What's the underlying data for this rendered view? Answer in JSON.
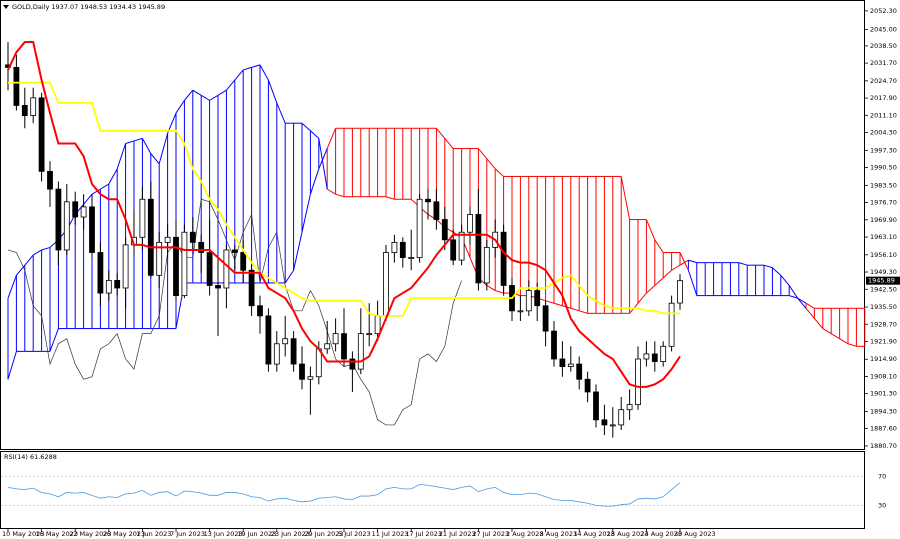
{
  "chart_data": [
    {
      "type": "candlestick",
      "header": "GOLD,Daily 1937.07 1948.53 1934.43 1945.89",
      "categories": [
        "10 May 2023",
        null,
        null,
        null,
        "16 May 2023",
        null,
        null,
        null,
        "22 May 2023",
        null,
        null,
        null,
        "26 May 2023",
        null,
        null,
        null,
        "1 Jun 2023",
        null,
        null,
        null,
        "7 Jun 2023",
        null,
        null,
        null,
        "13 Jun 2023",
        null,
        null,
        null,
        "19 Jun 2023",
        null,
        null,
        null,
        "23 Jun 2023",
        null,
        null,
        null,
        "29 Jun 2023",
        null,
        null,
        null,
        "5 Jul 2023",
        null,
        null,
        null,
        "11 Jul 2023",
        null,
        null,
        null,
        "17 Jul 2023",
        null,
        null,
        null,
        "21 Jul 2023",
        null,
        null,
        null,
        "27 Jul 2023",
        null,
        null,
        null,
        "2 Aug 2023",
        null,
        null,
        null,
        "8 Aug 2023",
        null,
        null,
        null,
        "14 Aug 2023",
        null,
        null,
        null,
        "18 Aug 2023",
        null,
        null,
        null,
        "24 Aug 2023",
        null,
        null,
        null,
        "30 Aug 2023",
        null,
        null,
        null,
        null,
        null,
        null,
        null,
        null,
        null,
        null,
        null,
        null,
        null,
        null,
        null,
        null,
        null,
        null,
        null,
        null,
        null,
        null
      ],
      "open": [
        2031,
        2030,
        2015,
        2011,
        2018,
        1989,
        1982,
        1958,
        1977,
        1971,
        1975,
        1957,
        1941,
        1946,
        1943,
        1960,
        1963,
        1978,
        1948,
        1961,
        1963,
        1940,
        1965,
        1961,
        1957,
        1944,
        1943,
        1958,
        1957,
        1950,
        1936,
        1932,
        1913,
        1921,
        1923,
        1913,
        1907,
        1908,
        1919,
        1921,
        1925,
        1915,
        1911,
        1925,
        1925,
        1932,
        1957,
        1961,
        1955,
        1955,
        1978,
        1977,
        1970,
        1962,
        1954,
        1965,
        1972,
        1945,
        1959,
        1965,
        1944,
        1934,
        1934,
        1942,
        1936,
        1926,
        1915,
        1912,
        1913,
        1907,
        1902,
        1891,
        1889,
        1889,
        1895,
        1897,
        1915,
        1917,
        1914,
        1920,
        1937.07,
        null,
        null,
        null,
        null,
        null,
        null,
        null,
        null,
        null,
        null,
        null,
        null,
        null,
        null,
        null,
        null,
        null,
        null,
        null,
        null,
        null,
        null
      ],
      "high": [
        2040,
        2035,
        2022,
        2022,
        2020,
        1993,
        1985,
        1984,
        1981,
        1980,
        1980,
        1961,
        1950,
        1949,
        1963,
        1974,
        1983,
        1985,
        1965,
        1968,
        1970,
        1968,
        1971,
        1964,
        1970,
        1956,
        1960,
        1960,
        1962,
        1953,
        1940,
        1935,
        1926,
        1932,
        1926,
        1920,
        1912,
        1922,
        1930,
        1931,
        1935,
        1918,
        1935,
        1937,
        1938,
        1960,
        1964,
        1963,
        1966,
        1980,
        1982,
        1982,
        1975,
        1966,
        1968,
        1975,
        1982,
        1962,
        1970,
        1968,
        1947,
        1940,
        1946,
        1945,
        1938,
        1930,
        1922,
        1920,
        1916,
        1910,
        1905,
        1897,
        1896,
        1900,
        1903,
        1920,
        1922,
        1922,
        1922,
        1940,
        1948.53,
        null,
        null,
        null,
        null,
        null,
        null,
        null,
        null,
        null,
        null,
        null,
        null,
        null,
        null,
        null,
        null,
        null,
        null,
        null,
        null,
        null,
        null
      ],
      "low": [
        2021,
        2013,
        2006,
        2008,
        1985,
        1975,
        1952,
        1956,
        1968,
        1966,
        1955,
        1936,
        1938,
        1940,
        1935,
        1956,
        1958,
        1947,
        1943,
        1955,
        1938,
        1939,
        1958,
        1949,
        1940,
        1924,
        1935,
        1950,
        1945,
        1932,
        1925,
        1910,
        1910,
        1916,
        1910,
        1903,
        1893,
        1905,
        1917,
        1918,
        1912,
        1902,
        1909,
        1920,
        1922,
        1930,
        1953,
        1951,
        1950,
        1953,
        1970,
        1966,
        1958,
        1952,
        1952,
        1960,
        1942,
        1942,
        1955,
        1940,
        1930,
        1930,
        1932,
        1930,
        1920,
        1912,
        1908,
        1910,
        1903,
        1898,
        1888,
        1885,
        1884,
        1887,
        1891,
        1895,
        1912,
        1910,
        1912,
        1918,
        1934.43,
        null,
        null,
        null,
        null,
        null,
        null,
        null,
        null,
        null,
        null,
        null,
        null,
        null,
        null,
        null,
        null,
        null,
        null,
        null,
        null,
        null,
        null
      ],
      "close": [
        2030,
        2015,
        2011,
        2018,
        1989,
        1982,
        1958,
        1977,
        1971,
        1975,
        1957,
        1941,
        1946,
        1943,
        1960,
        1963,
        1978,
        1948,
        1961,
        1963,
        1940,
        1965,
        1961,
        1957,
        1944,
        1943,
        1958,
        1957,
        1950,
        1936,
        1932,
        1913,
        1921,
        1923,
        1913,
        1907,
        1908,
        1919,
        1921,
        1925,
        1915,
        1911,
        1925,
        1925,
        1932,
        1957,
        1961,
        1955,
        1955,
        1978,
        1977,
        1970,
        1962,
        1954,
        1965,
        1972,
        1945,
        1959,
        1965,
        1944,
        1934,
        1934,
        1942,
        1936,
        1926,
        1915,
        1912,
        1913,
        1907,
        1902,
        1891,
        1889,
        1889,
        1895,
        1897,
        1915,
        1917,
        1914,
        1920,
        1937,
        1945.89,
        null,
        null,
        null,
        null,
        null,
        null,
        null,
        null,
        null,
        null,
        null,
        null,
        null,
        null,
        null,
        null,
        null,
        null,
        null,
        null,
        null,
        null
      ],
      "tenkan": {
        "color": "#ff0000",
        "values": [
          2029,
          2036,
          2040,
          2040,
          2025,
          2012,
          2000,
          2000,
          2000,
          1995,
          1984,
          1980,
          1978,
          1978,
          1970,
          1960,
          1960,
          1959,
          1959,
          1959,
          1959,
          1958,
          1958,
          1958,
          1958,
          1955,
          1952,
          1949,
          1949,
          1949,
          1949,
          1943,
          1941,
          1939,
          1934,
          1927,
          1922,
          1919,
          1914,
          1914,
          1914,
          1914,
          1914,
          1916,
          1923,
          1931,
          1939,
          1941,
          1943,
          1947,
          1951,
          1956,
          1960,
          1964,
          1964,
          1964,
          1964,
          1964,
          1962,
          1957,
          1954,
          1953,
          1953,
          1952,
          1950,
          1945,
          1940,
          1931,
          1926,
          1923,
          1920,
          1917,
          1915,
          1910,
          1905,
          1904,
          1904,
          1905,
          1907,
          1911,
          1916,
          null,
          null,
          null,
          null,
          null,
          null,
          null,
          null,
          null,
          null,
          null,
          null,
          null,
          null,
          null,
          null,
          null,
          null,
          null,
          null,
          null,
          null
        ]
      },
      "kijun": {
        "color": "#ffff00",
        "values": [
          2024,
          2024,
          2024,
          2024,
          2024,
          2024,
          2016,
          2016,
          2016,
          2016,
          2016,
          2005,
          2005,
          2005,
          2005,
          2005,
          2005,
          2005,
          2005,
          2005,
          2005,
          2000,
          1990,
          1985,
          1978,
          1974,
          1968,
          1963,
          1958,
          1953,
          1949,
          1947,
          1945,
          1943,
          1941,
          1939,
          1938,
          1938,
          1938,
          1938,
          1938,
          1938,
          1938,
          1933,
          1932,
          1932,
          1932,
          1932,
          1939,
          1939,
          1939,
          1939,
          1939,
          1939,
          1939,
          1939,
          1939,
          1939,
          1939,
          1939,
          1939,
          1943,
          1943,
          1943,
          1943,
          1945,
          1947,
          1948,
          1944,
          1940,
          1938,
          1936,
          1935,
          1935,
          1935,
          1935,
          1934,
          1934,
          1933,
          1933,
          1933,
          null,
          null,
          null,
          null,
          null,
          null,
          null,
          null,
          null,
          null,
          null,
          null,
          null,
          null,
          null,
          null,
          null,
          null,
          null,
          null,
          null,
          null
        ]
      },
      "span_a": {
        "color": "#0000ff",
        "values": [
          1939,
          1948,
          1952,
          1956,
          1958,
          1959,
          1962,
          1966,
          1972,
          1976,
          1980,
          1982,
          1984,
          1990,
          2000,
          2001,
          2002,
          1996,
          1992,
          2004,
          2012,
          2017,
          2021,
          2019,
          2017,
          2019,
          2021,
          2025,
          2029,
          2030,
          2031,
          2025,
          2016,
          2008,
          2008,
          2008,
          2005,
          2002,
          1982,
          1980,
          1979,
          1979,
          1979,
          1979,
          1979,
          1979,
          1978,
          1978,
          1978,
          1975,
          1972,
          1970,
          1967,
          1965,
          1963,
          1955,
          1947,
          1944,
          1942,
          1941,
          1941,
          1940,
          1940,
          1939,
          1938,
          1937,
          1936,
          1935,
          1934,
          1933,
          1933,
          1933,
          1933,
          1933,
          1933,
          1937,
          1941,
          1944,
          1947,
          1950,
          1952,
          1954,
          1953,
          1953,
          1953,
          1953,
          1953,
          1953,
          1952,
          1952,
          1952,
          1951,
          1948,
          1944,
          1939,
          1935,
          1931,
          1927,
          1925,
          1923,
          1921,
          1920,
          1920
        ]
      },
      "span_b": {
        "color": "#ff0000",
        "values": [
          1907,
          1918,
          1918,
          1918,
          1918,
          1918,
          1927,
          1927,
          1927,
          1927,
          1927,
          1927,
          1927,
          1927,
          1927,
          1927,
          1927,
          1927,
          1927,
          1927,
          1927,
          1945,
          1945,
          1945,
          1945,
          1945,
          1945,
          1945,
          1945,
          1945,
          1945,
          1945,
          1945,
          1945,
          1950,
          1965,
          1980,
          1990,
          1998,
          2006,
          2006,
          2006,
          2006,
          2006,
          2006,
          2006,
          2006,
          2006,
          2006,
          2006,
          2006,
          2006,
          2002,
          1998,
          1998,
          1998,
          1998,
          1994,
          1990,
          1987,
          1987,
          1987,
          1987,
          1987,
          1987,
          1987,
          1987,
          1987,
          1987,
          1987,
          1987,
          1987,
          1987,
          1987,
          1970,
          1970,
          1970,
          1962,
          1957,
          1957,
          1957,
          1950,
          1940,
          1940,
          1940,
          1940,
          1940,
          1940,
          1940,
          1940,
          1940,
          1940,
          1940,
          1940,
          1939,
          1937,
          1935,
          1935,
          1935,
          1935,
          1935,
          1935,
          1935
        ]
      },
      "chikou": {
        "color": "#333333"
      },
      "ylim": [
        1879.5,
        2055.8
      ],
      "yticks": [
        {
          "value": 2052.3,
          "label": "2052.30"
        },
        {
          "value": 2045,
          "label": "2045.00"
        },
        {
          "value": 2038.5,
          "label": "2038.50"
        },
        {
          "value": 2031.7,
          "label": "2031.70"
        },
        {
          "value": 2024.7,
          "label": "2024.70"
        },
        {
          "value": 2017.9,
          "label": "2017.90"
        },
        {
          "value": 2011.1,
          "label": "2011.10"
        },
        {
          "value": 2004.3,
          "label": "2004.30"
        },
        {
          "value": 1997.3,
          "label": "1997.30"
        },
        {
          "value": 1990.5,
          "label": "1990.50"
        },
        {
          "value": 1983.5,
          "label": "1983.50"
        },
        {
          "value": 1976.7,
          "label": "1976.70"
        },
        {
          "value": 1969.9,
          "label": "1969.90"
        },
        {
          "value": 1963.1,
          "label": "1963.10"
        },
        {
          "value": 1956.1,
          "label": "1956.10"
        },
        {
          "value": 1949.3,
          "label": "1949.30"
        },
        {
          "value": 1942.5,
          "label": "1942.50"
        },
        {
          "value": 1935.5,
          "label": "1935.50"
        },
        {
          "value": 1928.7,
          "label": "1928.70"
        },
        {
          "value": 1921.9,
          "label": "1921.90"
        },
        {
          "value": 1914.9,
          "label": "1914.90"
        },
        {
          "value": 1908.1,
          "label": "1908.10"
        },
        {
          "value": 1901.3,
          "label": "1901.30"
        },
        {
          "value": 1894.3,
          "label": "1894.30"
        },
        {
          "value": 1887.6,
          "label": "1887.60"
        },
        {
          "value": 1880.7,
          "label": "1880.70"
        }
      ],
      "current_price": 1945.89
    },
    {
      "type": "line",
      "header": "RSI(14) 61.6288",
      "color": "#4a9be0",
      "values": [
        55,
        53,
        52,
        54,
        48,
        46,
        42,
        48,
        47,
        48,
        44,
        40,
        42,
        41,
        46,
        47,
        51,
        44,
        48,
        49,
        43,
        50,
        49,
        47,
        44,
        44,
        48,
        48,
        46,
        42,
        41,
        36,
        39,
        40,
        37,
        35,
        36,
        40,
        41,
        42,
        39,
        38,
        43,
        43,
        45,
        53,
        55,
        53,
        53,
        59,
        58,
        56,
        54,
        52,
        55,
        57,
        49,
        53,
        55,
        48,
        45,
        45,
        47,
        46,
        42,
        38,
        37,
        37,
        35,
        33,
        30,
        29,
        29,
        31,
        32,
        39,
        40,
        39,
        42,
        52,
        61.6288
      ],
      "ylim": [
        0,
        100
      ],
      "yticks": [
        70,
        30
      ]
    }
  ]
}
